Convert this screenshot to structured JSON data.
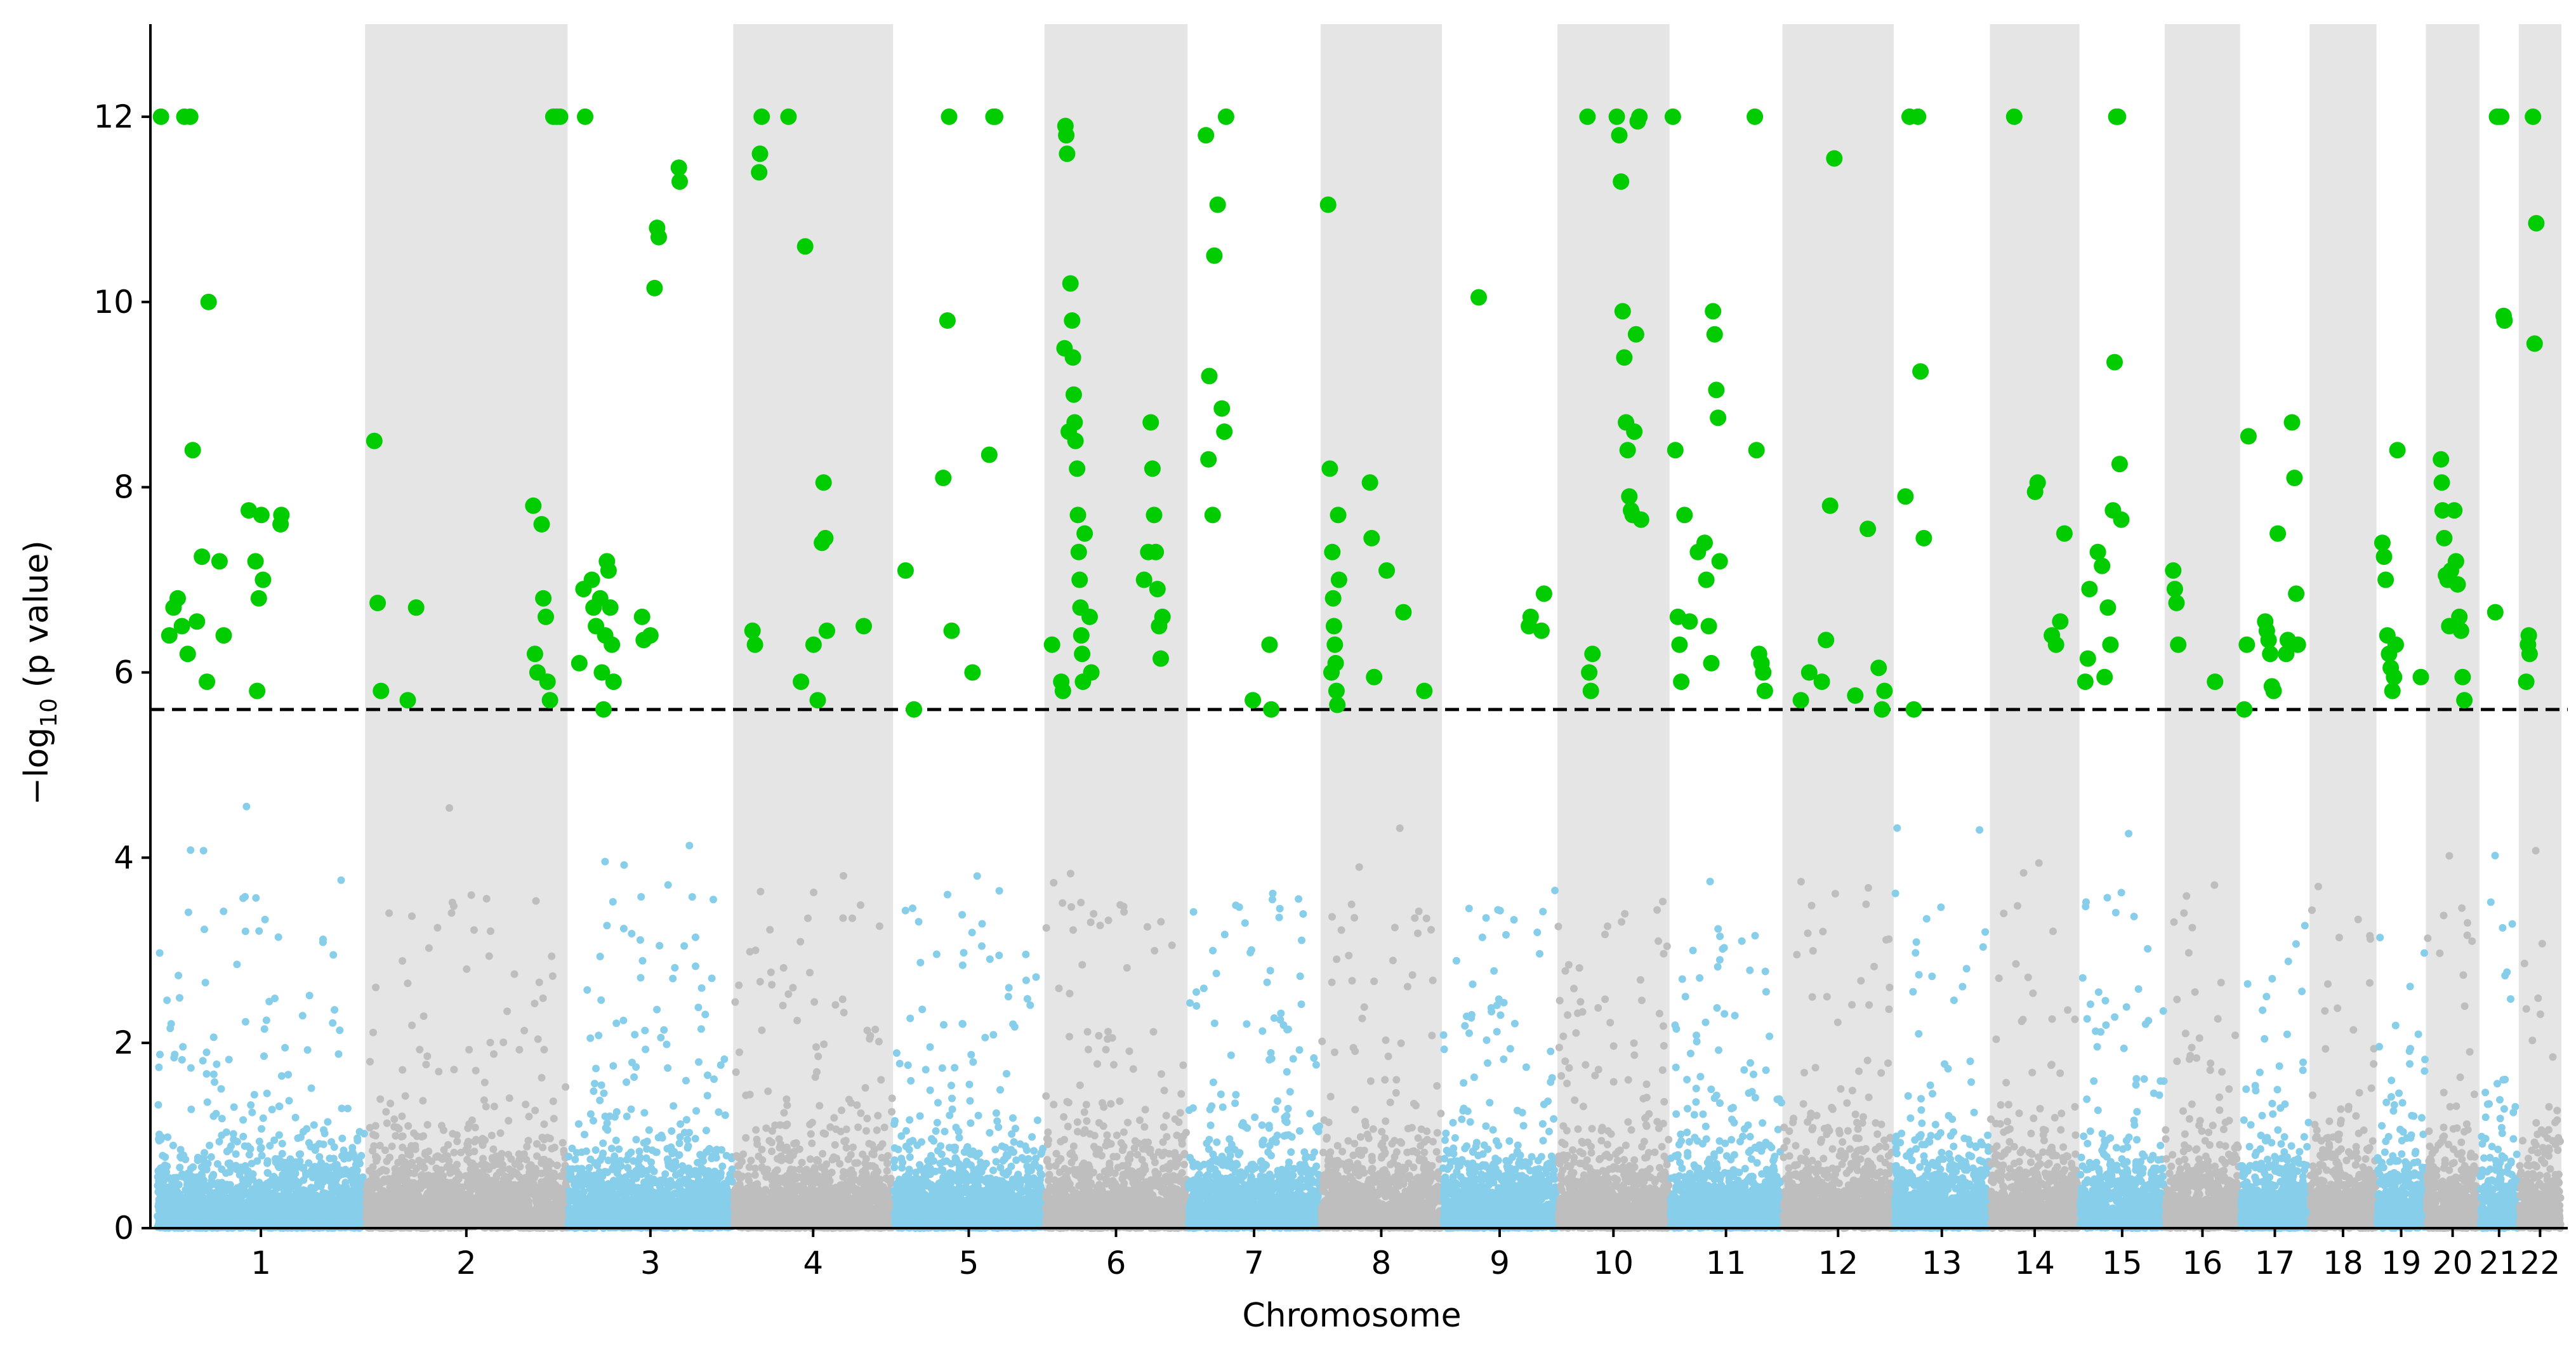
{
  "chart_data": {
    "type": "scatter",
    "title": "",
    "xlabel": "Chromosome",
    "ylabel_prefix": "−log",
    "ylabel_sub": "10",
    "ylabel_suffix": " (p value)",
    "ylim": [
      0,
      13
    ],
    "yticks": [
      0,
      2,
      4,
      6,
      8,
      10,
      12
    ],
    "grid": false,
    "significance_threshold": 5.6,
    "colors": {
      "odd_chromosome_points": "#87ceeb",
      "even_chromosome_points": "#bebebe",
      "significant_points": "#00cc00",
      "band_shading": "#e5e5e5",
      "threshold_line": "#000000"
    },
    "chromosomes": [
      {
        "label": "1",
        "start": 0,
        "end": 249
      },
      {
        "label": "2",
        "start": 249,
        "end": 491
      },
      {
        "label": "3",
        "start": 491,
        "end": 689
      },
      {
        "label": "4",
        "start": 689,
        "end": 880
      },
      {
        "label": "5",
        "start": 880,
        "end": 1061
      },
      {
        "label": "6",
        "start": 1061,
        "end": 1232
      },
      {
        "label": "7",
        "start": 1232,
        "end": 1391
      },
      {
        "label": "8",
        "start": 1391,
        "end": 1536
      },
      {
        "label": "9",
        "start": 1536,
        "end": 1674
      },
      {
        "label": "10",
        "start": 1674,
        "end": 1808
      },
      {
        "label": "11",
        "start": 1808,
        "end": 1943
      },
      {
        "label": "12",
        "start": 1943,
        "end": 2076
      },
      {
        "label": "13",
        "start": 2076,
        "end": 2191
      },
      {
        "label": "14",
        "start": 2191,
        "end": 2298
      },
      {
        "label": "15",
        "start": 2298,
        "end": 2400
      },
      {
        "label": "16",
        "start": 2400,
        "end": 2490
      },
      {
        "label": "17",
        "start": 2490,
        "end": 2573
      },
      {
        "label": "18",
        "start": 2573,
        "end": 2653
      },
      {
        "label": "19",
        "start": 2653,
        "end": 2712
      },
      {
        "label": "20",
        "start": 2712,
        "end": 2776
      },
      {
        "label": "21",
        "start": 2776,
        "end": 2823
      },
      {
        "label": "22",
        "start": 2823,
        "end": 2874
      }
    ],
    "significant_points": [
      [
        5,
        12
      ],
      [
        15,
        6.4
      ],
      [
        20,
        6.7
      ],
      [
        25,
        6.8
      ],
      [
        30,
        6.5
      ],
      [
        33,
        12
      ],
      [
        37,
        6.2
      ],
      [
        40,
        12
      ],
      [
        43,
        8.4
      ],
      [
        48,
        6.55
      ],
      [
        54,
        7.25
      ],
      [
        60,
        5.9
      ],
      [
        62,
        10
      ],
      [
        75,
        7.2
      ],
      [
        80,
        6.4
      ],
      [
        110,
        7.75
      ],
      [
        118,
        7.2
      ],
      [
        120,
        5.8
      ],
      [
        122,
        6.8
      ],
      [
        125,
        7.7
      ],
      [
        127,
        7.0
      ],
      [
        148,
        7.6
      ],
      [
        149,
        7.7
      ],
      [
        260,
        8.5
      ],
      [
        264,
        6.75
      ],
      [
        268,
        5.8
      ],
      [
        300,
        5.7
      ],
      [
        310,
        6.7
      ],
      [
        450,
        7.8
      ],
      [
        452,
        6.2
      ],
      [
        455,
        6.0
      ],
      [
        460,
        7.6
      ],
      [
        462,
        6.8
      ],
      [
        465,
        6.6
      ],
      [
        467,
        5.9
      ],
      [
        470,
        5.7
      ],
      [
        474,
        12
      ],
      [
        478,
        12
      ],
      [
        482,
        12
      ],
      [
        505,
        6.1
      ],
      [
        510,
        6.9
      ],
      [
        512,
        12
      ],
      [
        520,
        7.0
      ],
      [
        522,
        6.7
      ],
      [
        525,
        6.5
      ],
      [
        530,
        6.8
      ],
      [
        532,
        6.0
      ],
      [
        534,
        5.6
      ],
      [
        536,
        6.4
      ],
      [
        538,
        7.2
      ],
      [
        540,
        7.1
      ],
      [
        542,
        6.7
      ],
      [
        544,
        6.3
      ],
      [
        546,
        5.9
      ],
      [
        580,
        6.6
      ],
      [
        582,
        6.35
      ],
      [
        590,
        6.4
      ],
      [
        595,
        10.15
      ],
      [
        598,
        10.8
      ],
      [
        600,
        10.7
      ],
      [
        624,
        11.45
      ],
      [
        625,
        11.3
      ],
      [
        712,
        6.45
      ],
      [
        715,
        6.3
      ],
      [
        720,
        11.4
      ],
      [
        721,
        11.6
      ],
      [
        723,
        12
      ],
      [
        755,
        12
      ],
      [
        770,
        5.9
      ],
      [
        775,
        10.6
      ],
      [
        785,
        6.3
      ],
      [
        790,
        5.7
      ],
      [
        795,
        7.4
      ],
      [
        797,
        8.05
      ],
      [
        799,
        7.45
      ],
      [
        801,
        6.45
      ],
      [
        845,
        6.5
      ],
      [
        895,
        7.1
      ],
      [
        905,
        5.6
      ],
      [
        940,
        8.1
      ],
      [
        945,
        9.8
      ],
      [
        947,
        12
      ],
      [
        950,
        6.45
      ],
      [
        975,
        6.0
      ],
      [
        995,
        8.35
      ],
      [
        1000,
        12
      ],
      [
        1002,
        12
      ],
      [
        1070,
        6.3
      ],
      [
        1081,
        5.9
      ],
      [
        1083,
        5.8
      ],
      [
        1085,
        9.5
      ],
      [
        1086,
        11.9
      ],
      [
        1087,
        11.8
      ],
      [
        1088,
        11.6
      ],
      [
        1090,
        8.6
      ],
      [
        1092,
        10.2
      ],
      [
        1094,
        9.8
      ],
      [
        1095,
        9.4
      ],
      [
        1096,
        9.0
      ],
      [
        1097,
        8.7
      ],
      [
        1098,
        8.5
      ],
      [
        1100,
        8.2
      ],
      [
        1101,
        7.7
      ],
      [
        1102,
        7.3
      ],
      [
        1103,
        7.0
      ],
      [
        1104,
        6.7
      ],
      [
        1105,
        6.4
      ],
      [
        1106,
        6.2
      ],
      [
        1107,
        5.9
      ],
      [
        1109,
        7.5
      ],
      [
        1115,
        6.6
      ],
      [
        1117,
        6.0
      ],
      [
        1180,
        7.0
      ],
      [
        1185,
        7.3
      ],
      [
        1188,
        8.7
      ],
      [
        1190,
        8.2
      ],
      [
        1192,
        7.7
      ],
      [
        1194,
        7.3
      ],
      [
        1196,
        6.9
      ],
      [
        1198,
        6.5
      ],
      [
        1200,
        6.15
      ],
      [
        1202,
        6.6
      ],
      [
        1254,
        11.8
      ],
      [
        1257,
        8.3
      ],
      [
        1258,
        9.2
      ],
      [
        1262,
        7.7
      ],
      [
        1264,
        10.5
      ],
      [
        1268,
        11.05
      ],
      [
        1273,
        8.85
      ],
      [
        1276,
        8.6
      ],
      [
        1278,
        12
      ],
      [
        1310,
        5.7
      ],
      [
        1330,
        6.3
      ],
      [
        1332,
        5.6
      ],
      [
        1400,
        11.05
      ],
      [
        1402,
        8.2
      ],
      [
        1404,
        6.0
      ],
      [
        1405,
        7.3
      ],
      [
        1406,
        6.8
      ],
      [
        1407,
        6.5
      ],
      [
        1408,
        6.3
      ],
      [
        1409,
        6.1
      ],
      [
        1410,
        5.8
      ],
      [
        1411,
        5.65
      ],
      [
        1412,
        7.7
      ],
      [
        1413,
        7.0
      ],
      [
        1450,
        8.05
      ],
      [
        1452,
        7.45
      ],
      [
        1455,
        5.95
      ],
      [
        1470,
        7.1
      ],
      [
        1490,
        6.65
      ],
      [
        1515,
        5.8
      ],
      [
        1580,
        10.05
      ],
      [
        1640,
        6.5
      ],
      [
        1642,
        6.6
      ],
      [
        1655,
        6.45
      ],
      [
        1658,
        6.85
      ],
      [
        1710,
        12
      ],
      [
        1712,
        6.0
      ],
      [
        1714,
        5.8
      ],
      [
        1716,
        6.2
      ],
      [
        1745,
        12
      ],
      [
        1748,
        11.8
      ],
      [
        1750,
        11.3
      ],
      [
        1752,
        9.9
      ],
      [
        1754,
        9.4
      ],
      [
        1756,
        8.7
      ],
      [
        1758,
        8.4
      ],
      [
        1760,
        7.9
      ],
      [
        1762,
        7.75
      ],
      [
        1764,
        7.7
      ],
      [
        1766,
        8.6
      ],
      [
        1768,
        9.65
      ],
      [
        1770,
        11.95
      ],
      [
        1772,
        12
      ],
      [
        1774,
        7.65
      ],
      [
        1812,
        12
      ],
      [
        1815,
        8.4
      ],
      [
        1818,
        6.6
      ],
      [
        1820,
        6.3
      ],
      [
        1822,
        5.9
      ],
      [
        1826,
        7.7
      ],
      [
        1832,
        6.55
      ],
      [
        1842,
        7.3
      ],
      [
        1850,
        7.4
      ],
      [
        1852,
        7.0
      ],
      [
        1855,
        6.5
      ],
      [
        1858,
        6.1
      ],
      [
        1860,
        9.9
      ],
      [
        1862,
        9.65
      ],
      [
        1864,
        9.05
      ],
      [
        1866,
        8.75
      ],
      [
        1868,
        7.2
      ],
      [
        1910,
        12
      ],
      [
        1912,
        8.4
      ],
      [
        1915,
        6.2
      ],
      [
        1918,
        6.1
      ],
      [
        1920,
        6.0
      ],
      [
        1922,
        5.8
      ],
      [
        1965,
        5.7
      ],
      [
        1975,
        6.0
      ],
      [
        1990,
        5.9
      ],
      [
        1995,
        6.35
      ],
      [
        2000,
        7.8
      ],
      [
        2005,
        11.55
      ],
      [
        2030,
        5.75
      ],
      [
        2045,
        7.55
      ],
      [
        2058,
        6.05
      ],
      [
        2062,
        5.6
      ],
      [
        2065,
        5.8
      ],
      [
        2090,
        7.9
      ],
      [
        2095,
        12
      ],
      [
        2100,
        5.6
      ],
      [
        2105,
        12
      ],
      [
        2108,
        9.25
      ],
      [
        2112,
        7.45
      ],
      [
        2220,
        12
      ],
      [
        2245,
        7.95
      ],
      [
        2248,
        8.05
      ],
      [
        2265,
        6.4
      ],
      [
        2270,
        6.3
      ],
      [
        2275,
        6.55
      ],
      [
        2280,
        7.5
      ],
      [
        2305,
        5.9
      ],
      [
        2308,
        6.15
      ],
      [
        2310,
        6.9
      ],
      [
        2320,
        7.3
      ],
      [
        2325,
        7.15
      ],
      [
        2328,
        5.95
      ],
      [
        2332,
        6.7
      ],
      [
        2335,
        6.3
      ],
      [
        2338,
        7.75
      ],
      [
        2340,
        9.35
      ],
      [
        2342,
        12
      ],
      [
        2344,
        12
      ],
      [
        2346,
        8.25
      ],
      [
        2348,
        7.65
      ],
      [
        2410,
        7.1
      ],
      [
        2412,
        6.9
      ],
      [
        2414,
        6.75
      ],
      [
        2416,
        6.3
      ],
      [
        2460,
        5.9
      ],
      [
        2495,
        5.6
      ],
      [
        2498,
        6.3
      ],
      [
        2500,
        8.55
      ],
      [
        2520,
        6.55
      ],
      [
        2522,
        6.45
      ],
      [
        2524,
        6.35
      ],
      [
        2526,
        6.2
      ],
      [
        2528,
        5.85
      ],
      [
        2530,
        5.8
      ],
      [
        2535,
        7.5
      ],
      [
        2545,
        6.2
      ],
      [
        2547,
        6.35
      ],
      [
        2552,
        8.7
      ],
      [
        2555,
        8.1
      ],
      [
        2557,
        6.85
      ],
      [
        2559,
        6.3
      ],
      [
        2660,
        7.4
      ],
      [
        2662,
        7.25
      ],
      [
        2664,
        7.0
      ],
      [
        2666,
        6.4
      ],
      [
        2668,
        6.2
      ],
      [
        2670,
        6.05
      ],
      [
        2672,
        5.8
      ],
      [
        2674,
        5.95
      ],
      [
        2676,
        6.3
      ],
      [
        2678,
        8.4
      ],
      [
        2706,
        5.95
      ],
      [
        2730,
        8.3
      ],
      [
        2731,
        8.05
      ],
      [
        2732,
        7.75
      ],
      [
        2734,
        7.45
      ],
      [
        2736,
        7.05
      ],
      [
        2738,
        7.0
      ],
      [
        2740,
        6.5
      ],
      [
        2742,
        7.1
      ],
      [
        2746,
        7.75
      ],
      [
        2748,
        7.2
      ],
      [
        2750,
        6.95
      ],
      [
        2752,
        6.6
      ],
      [
        2754,
        6.45
      ],
      [
        2756,
        5.95
      ],
      [
        2758,
        5.7
      ],
      [
        2795,
        6.65
      ],
      [
        2797,
        12
      ],
      [
        2799,
        12
      ],
      [
        2802,
        12
      ],
      [
        2805,
        9.85
      ],
      [
        2806,
        9.8
      ],
      [
        2832,
        5.9
      ],
      [
        2834,
        6.3
      ],
      [
        2835,
        6.4
      ],
      [
        2836,
        6.2
      ],
      [
        2840,
        12
      ],
      [
        2842,
        9.55
      ],
      [
        2844,
        10.85
      ]
    ]
  }
}
